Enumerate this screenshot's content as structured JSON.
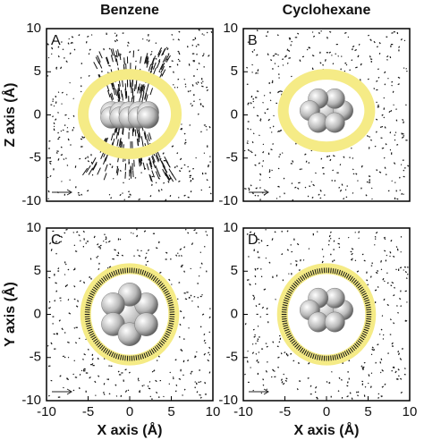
{
  "chart_data": [
    {
      "type": "vector-field",
      "title": "Benzene",
      "panel_label": "A",
      "ylabel": "Z axis (Å)",
      "xlim": [
        -10,
        10
      ],
      "ylim": [
        -10,
        10
      ],
      "yticks": [
        10,
        5,
        0,
        -5,
        -10
      ]
    },
    {
      "type": "vector-field",
      "title": "Cyclohexane",
      "panel_label": "B",
      "xlim": [
        -10,
        10
      ],
      "ylim": [
        -10,
        10
      ],
      "yticks": [
        10,
        5,
        0,
        -5,
        -10
      ]
    },
    {
      "type": "vector-field",
      "panel_label": "C",
      "ylabel": "Y axis (Å)",
      "xlabel": "X axis (Å)",
      "xlim": [
        -10,
        10
      ],
      "ylim": [
        -10,
        10
      ],
      "yticks": [
        10,
        5,
        0,
        -5,
        -10
      ],
      "xticks": [
        -10,
        -5,
        0,
        5,
        10
      ]
    },
    {
      "type": "vector-field",
      "panel_label": "D",
      "xlabel": "X axis (Å)",
      "xlim": [
        -10,
        10
      ],
      "ylim": [
        -10,
        10
      ],
      "yticks": [
        10,
        5,
        0,
        -5,
        -10
      ],
      "xticks": [
        -10,
        -5,
        0,
        5,
        10
      ]
    }
  ]
}
